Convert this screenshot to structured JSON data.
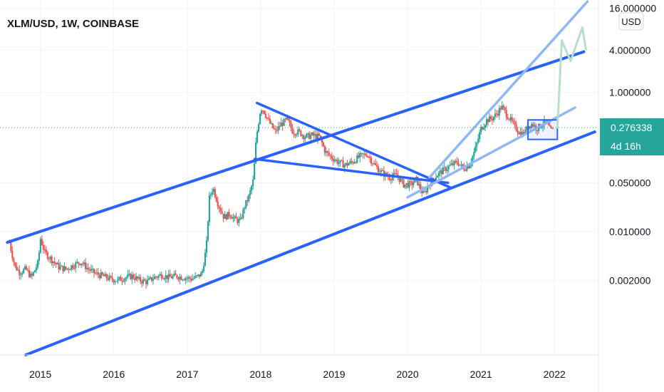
{
  "chart_data": {
    "type": "candlestick",
    "title": "XLM/USD, 1W, COINBASE",
    "y_scale": "log",
    "y_unit": "USD",
    "ylim": [
      0.00017,
      21
    ],
    "xlim": [
      2014.45,
      2022.58
    ],
    "x_ticks": [
      "2015",
      "2016",
      "2017",
      "2018",
      "2019",
      "2020",
      "2021",
      "2022"
    ],
    "y_ticks": [
      "16.000000",
      "4.000000",
      "1.000000",
      "0.050000",
      "0.010000",
      "0.002000"
    ],
    "last_price": "0.276338",
    "countdown": "4d 16h",
    "colors": {
      "up": "#26a69a",
      "down": "#ef5350",
      "trendline": "#2962ff",
      "light_trendline": "#90b8f8",
      "projection": "#b7e0c4",
      "price_label": "#26a69a"
    },
    "close_path": [
      [
        2014.58,
        0.007
      ],
      [
        2014.65,
        0.0032
      ],
      [
        2014.72,
        0.0026
      ],
      [
        2014.8,
        0.0029
      ],
      [
        2014.88,
        0.0022
      ],
      [
        2014.97,
        0.0036
      ],
      [
        2015.0,
        0.008
      ],
      [
        2015.06,
        0.005
      ],
      [
        2015.15,
        0.004
      ],
      [
        2015.25,
        0.0031
      ],
      [
        2015.35,
        0.0029
      ],
      [
        2015.45,
        0.0033
      ],
      [
        2015.55,
        0.0037
      ],
      [
        2015.65,
        0.0029
      ],
      [
        2015.75,
        0.0025
      ],
      [
        2015.85,
        0.0023
      ],
      [
        2015.95,
        0.0021
      ],
      [
        2016.05,
        0.002
      ],
      [
        2016.15,
        0.0022
      ],
      [
        2016.25,
        0.0023
      ],
      [
        2016.35,
        0.002
      ],
      [
        2016.45,
        0.0019
      ],
      [
        2016.55,
        0.0022
      ],
      [
        2016.65,
        0.0024
      ],
      [
        2016.75,
        0.0022
      ],
      [
        2016.85,
        0.0023
      ],
      [
        2016.95,
        0.0022
      ],
      [
        2017.05,
        0.0021
      ],
      [
        2017.12,
        0.0022
      ],
      [
        2017.2,
        0.0025
      ],
      [
        2017.26,
        0.006
      ],
      [
        2017.3,
        0.03
      ],
      [
        2017.35,
        0.043
      ],
      [
        2017.42,
        0.025
      ],
      [
        2017.5,
        0.016
      ],
      [
        2017.58,
        0.018
      ],
      [
        2017.65,
        0.015
      ],
      [
        2017.72,
        0.014
      ],
      [
        2017.78,
        0.023
      ],
      [
        2017.84,
        0.032
      ],
      [
        2017.9,
        0.055
      ],
      [
        2017.94,
        0.22
      ],
      [
        2018.0,
        0.6
      ],
      [
        2018.04,
        0.55
      ],
      [
        2018.1,
        0.4
      ],
      [
        2018.15,
        0.32
      ],
      [
        2018.2,
        0.27
      ],
      [
        2018.28,
        0.35
      ],
      [
        2018.36,
        0.4
      ],
      [
        2018.44,
        0.27
      ],
      [
        2018.52,
        0.27
      ],
      [
        2018.6,
        0.23
      ],
      [
        2018.7,
        0.24
      ],
      [
        2018.8,
        0.23
      ],
      [
        2018.88,
        0.14
      ],
      [
        2018.95,
        0.12
      ],
      [
        2019.05,
        0.1
      ],
      [
        2019.15,
        0.09
      ],
      [
        2019.25,
        0.1
      ],
      [
        2019.35,
        0.12
      ],
      [
        2019.45,
        0.13
      ],
      [
        2019.55,
        0.09
      ],
      [
        2019.65,
        0.07
      ],
      [
        2019.75,
        0.06
      ],
      [
        2019.85,
        0.065
      ],
      [
        2019.95,
        0.047
      ],
      [
        2020.05,
        0.048
      ],
      [
        2020.12,
        0.056
      ],
      [
        2020.18,
        0.04
      ],
      [
        2020.22,
        0.034
      ],
      [
        2020.28,
        0.045
      ],
      [
        2020.36,
        0.06
      ],
      [
        2020.44,
        0.07
      ],
      [
        2020.52,
        0.08
      ],
      [
        2020.6,
        0.09
      ],
      [
        2020.68,
        0.1
      ],
      [
        2020.76,
        0.08
      ],
      [
        2020.84,
        0.09
      ],
      [
        2020.92,
        0.15
      ],
      [
        2021.0,
        0.3
      ],
      [
        2021.08,
        0.4
      ],
      [
        2021.15,
        0.42
      ],
      [
        2021.22,
        0.5
      ],
      [
        2021.28,
        0.62
      ],
      [
        2021.34,
        0.5
      ],
      [
        2021.4,
        0.4
      ],
      [
        2021.46,
        0.32
      ],
      [
        2021.52,
        0.27
      ],
      [
        2021.58,
        0.25
      ],
      [
        2021.64,
        0.33
      ],
      [
        2021.7,
        0.35
      ],
      [
        2021.76,
        0.3
      ],
      [
        2021.82,
        0.34
      ],
      [
        2021.88,
        0.38
      ],
      [
        2021.94,
        0.29
      ],
      [
        2021.99,
        0.2763
      ]
    ]
  }
}
